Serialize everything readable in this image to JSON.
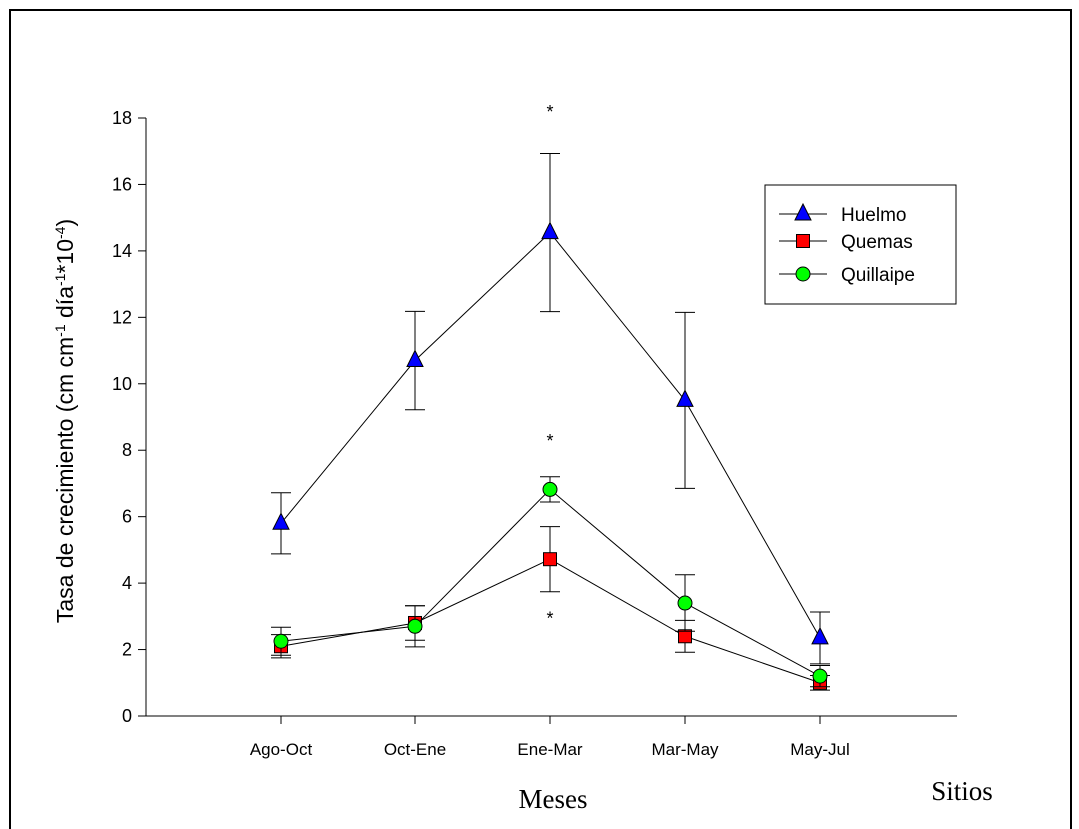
{
  "chart_data": {
    "type": "line",
    "xlabel": "Meses",
    "ylabel": "Tasa de crecimiento (cm cm-1 día-1*10-4)",
    "ylabel_parts": [
      "Tasa de crecimiento (cm cm",
      "-1",
      " día",
      "-1",
      "*10",
      "-4",
      ")"
    ],
    "legend_title": "Sitios",
    "categories": [
      "Ago-Oct",
      "Oct-Ene",
      "Ene-Mar",
      "Mar-May",
      "May-Jul"
    ],
    "ylim": [
      0,
      18
    ],
    "yticks": [
      0,
      2,
      4,
      6,
      8,
      10,
      12,
      14,
      16,
      18
    ],
    "legend_position": "top-right",
    "series": [
      {
        "name": "Huelmo",
        "marker": "triangle",
        "color": "#0000ff",
        "values": [
          5.8,
          10.7,
          14.55,
          9.5,
          2.35
        ],
        "err": [
          0.92,
          1.48,
          2.38,
          2.65,
          0.78
        ]
      },
      {
        "name": "Quemas",
        "marker": "square",
        "color": "#ff0000",
        "values": [
          2.1,
          2.8,
          4.72,
          2.4,
          1.0
        ],
        "err": [
          0.35,
          0.52,
          0.98,
          0.48,
          0.22
        ]
      },
      {
        "name": "Quillaipe",
        "marker": "circle",
        "color": "#00ff00",
        "values": [
          2.25,
          2.7,
          6.82,
          3.4,
          1.2
        ],
        "err": [
          0.42,
          0.62,
          0.38,
          0.85,
          0.32
        ]
      }
    ],
    "annotations": [
      {
        "text": "*",
        "category": "Ene-Mar",
        "y": 18.3
      },
      {
        "text": "*",
        "category": "Ene-Mar",
        "y": 8.4
      },
      {
        "text": "*",
        "category": "Ene-Mar",
        "y": 3.05
      }
    ]
  }
}
